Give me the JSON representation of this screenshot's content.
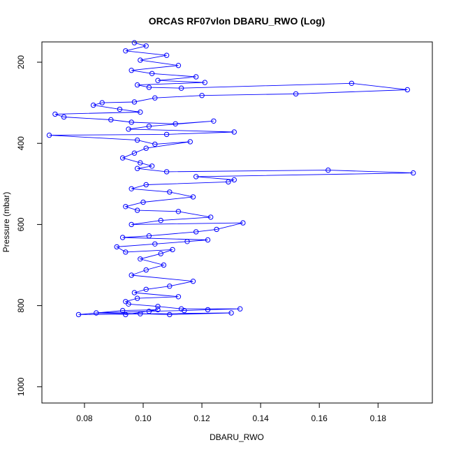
{
  "chart_data": {
    "type": "line",
    "title": "ORCAS RF07vlon DBARU_RWO (Log)",
    "xlabel": "DBARU_RWO",
    "ylabel": "Pressure (mbar)",
    "xlim": [
      0.0655,
      0.1985
    ],
    "ylim": [
      1040,
      150
    ],
    "y_inverted": true,
    "x_ticks": [
      "0.08",
      "0.10",
      "0.12",
      "0.14",
      "0.16",
      "0.18"
    ],
    "y_ticks": [
      "200",
      "400",
      "600",
      "800",
      "1000"
    ],
    "grid": false,
    "legend": "none",
    "marker": "open-circle",
    "color": "#0000ff",
    "series": [
      {
        "x": [
          0.097,
          0.101,
          0.094,
          0.108,
          0.099,
          0.112,
          0.096,
          0.103,
          0.118,
          0.105,
          0.121,
          0.098,
          0.102,
          0.113,
          0.171,
          0.19,
          0.152,
          0.12,
          0.104,
          0.097,
          0.086,
          0.083,
          0.092,
          0.099,
          0.07,
          0.073,
          0.089,
          0.096,
          0.111,
          0.124,
          0.102,
          0.095,
          0.131,
          0.108,
          0.068,
          0.098,
          0.104,
          0.116,
          0.101,
          0.097,
          0.093,
          0.099,
          0.103,
          0.098,
          0.108,
          0.163,
          0.192,
          0.118,
          0.131,
          0.129,
          0.101,
          0.096,
          0.109,
          0.117,
          0.1,
          0.094,
          0.098,
          0.112,
          0.123,
          0.106,
          0.096,
          0.134,
          0.125,
          0.118,
          0.102,
          0.093,
          0.122,
          0.115,
          0.104,
          0.091,
          0.094,
          0.11,
          0.106,
          0.099,
          0.107,
          0.101,
          0.096,
          0.117,
          0.109,
          0.101,
          0.097,
          0.112,
          0.098,
          0.094,
          0.095,
          0.105,
          0.113,
          0.133,
          0.122,
          0.114,
          0.102,
          0.084,
          0.099,
          0.109,
          0.13,
          0.078,
          0.093,
          0.105,
          0.094
        ],
        "y": [
          152,
          160,
          172,
          183,
          195,
          208,
          220,
          228,
          236,
          245,
          250,
          256,
          262,
          264,
          252,
          268,
          278,
          282,
          288,
          298,
          300,
          306,
          316,
          323,
          328,
          335,
          342,
          348,
          352,
          345,
          358,
          365,
          372,
          378,
          380,
          392,
          402,
          396,
          412,
          424,
          436,
          448,
          456,
          462,
          470,
          466,
          473,
          482,
          490,
          495,
          502,
          512,
          520,
          532,
          545,
          556,
          565,
          568,
          582,
          590,
          600,
          596,
          612,
          618,
          628,
          632,
          638,
          642,
          648,
          655,
          668,
          662,
          672,
          685,
          700,
          712,
          725,
          740,
          752,
          760,
          768,
          778,
          782,
          790,
          796,
          802,
          808,
          808,
          810,
          812,
          814,
          818,
          820,
          822,
          818,
          822,
          812,
          810,
          822
        ]
      }
    ]
  }
}
